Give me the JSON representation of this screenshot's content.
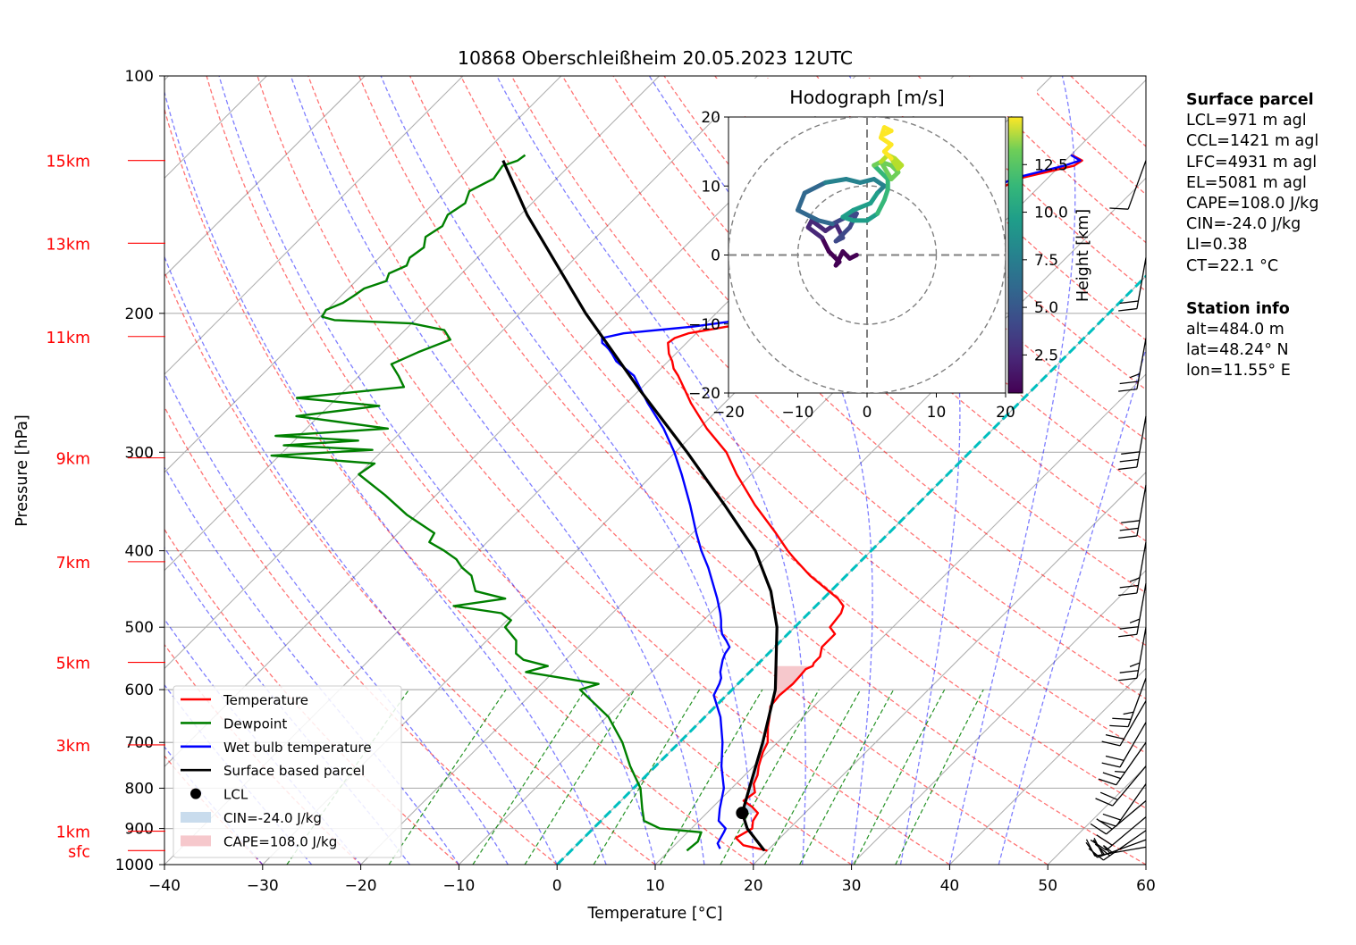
{
  "chart_data": {
    "type": "skew-t log-p",
    "title": "10868 Oberschleißheim 20.05.2023 12UTC",
    "xlabel": "Temperature [°C]",
    "ylabel": "Pressure [hPa]",
    "xlim": [
      -40,
      60
    ],
    "ylim": [
      1000,
      100
    ],
    "y_scale": "log",
    "skew_degrees": 45,
    "x_ticks": [
      "−40",
      "−30",
      "−20",
      "−10",
      "0",
      "10",
      "20",
      "30",
      "40",
      "50",
      "60"
    ],
    "x_tick_values": [
      -40,
      -30,
      -20,
      -10,
      0,
      10,
      20,
      30,
      40,
      50,
      60
    ],
    "y_ticks": [
      "100",
      "200",
      "300",
      "400",
      "500",
      "600",
      "700",
      "800",
      "900",
      "1000"
    ],
    "y_tick_values": [
      100,
      200,
      300,
      400,
      500,
      600,
      700,
      800,
      900,
      1000
    ],
    "height_labels": [
      {
        "label": "15km",
        "p": 128
      },
      {
        "label": "13km",
        "p": 163
      },
      {
        "label": "11km",
        "p": 214
      },
      {
        "label": "9km",
        "p": 305
      },
      {
        "label": "7km",
        "p": 413
      },
      {
        "label": "5km",
        "p": 554
      },
      {
        "label": "3km",
        "p": 705
      },
      {
        "label": "1km",
        "p": 907
      },
      {
        "label": "sfc",
        "p": 960
      }
    ],
    "series": [
      {
        "name": "Temperature",
        "color": "#ff0000",
        "p": [
          960,
          945,
          925,
          900,
          880,
          860,
          845,
          830,
          810,
          790,
          770,
          750,
          720,
          700,
          670,
          650,
          630,
          610,
          590,
          575,
          565,
          560,
          555,
          545,
          530,
          510,
          500,
          480,
          470,
          460,
          450,
          430,
          410,
          400,
          380,
          350,
          320,
          300,
          280,
          260,
          250,
          240,
          235,
          230,
          225,
          218,
          215,
          212,
          208,
          204,
          200,
          195,
          190,
          180,
          175,
          170,
          165,
          160,
          155,
          150,
          145,
          140,
          135,
          130,
          128,
          126
        ],
        "t": [
          20.0,
          17.0,
          15.5,
          16.2,
          15.5,
          15.2,
          14.0,
          12.5,
          12.8,
          11.8,
          11.3,
          10.5,
          9.5,
          9.0,
          7.5,
          6.6,
          5.6,
          5.4,
          5.6,
          5.5,
          5.4,
          5.8,
          5.6,
          5.6,
          4.8,
          4.8,
          3.6,
          3.3,
          2.8,
          1.5,
          -0.2,
          -3.7,
          -6.9,
          -8.5,
          -11.5,
          -16.5,
          -21.5,
          -24.8,
          -29.2,
          -33.4,
          -35.4,
          -37.5,
          -38.7,
          -39.6,
          -40.7,
          -41.9,
          -41.7,
          -40.8,
          -37.6,
          -34.1,
          -34.3,
          -33.2,
          -33.6,
          -32.1,
          -32.6,
          -31.6,
          -30.2,
          -29.7,
          -28.2,
          -27.5,
          -25.3,
          -23.9,
          -23.0,
          -18.6,
          -18.3,
          -19.9
        ]
      },
      {
        "name": "Dewpoint",
        "color": "#008000",
        "p": [
          960,
          935,
          910,
          900,
          880,
          850,
          800,
          750,
          700,
          650,
          600,
          590,
          580,
          570,
          560,
          550,
          540,
          520,
          500,
          490,
          480,
          470,
          460,
          450,
          440,
          430,
          420,
          410,
          400,
          390,
          380,
          360,
          340,
          320,
          310,
          303,
          298,
          294,
          290,
          286,
          280,
          270,
          262,
          256,
          248,
          240,
          232,
          224,
          216,
          210,
          206,
          204,
          202,
          198,
          194,
          190,
          186,
          182,
          178,
          174,
          170,
          165,
          160,
          155,
          150,
          145,
          140,
          135,
          130,
          128,
          126
        ],
        "t": [
          11.8,
          12.0,
          11.4,
          6.8,
          4.4,
          3.0,
          0.7,
          -2.6,
          -5.8,
          -9.8,
          -15.5,
          -14.2,
          -18.5,
          -22.8,
          -21.2,
          -24.3,
          -25.7,
          -27.0,
          -29.5,
          -29.6,
          -31.3,
          -36.9,
          -32.4,
          -36.2,
          -37.2,
          -38.2,
          -40.0,
          -41.4,
          -43.5,
          -45.9,
          -46.3,
          -51.0,
          -55.2,
          -60.0,
          -59.5,
          -70.8,
          -61.1,
          -70.6,
          -63.5,
          -72.4,
          -61.7,
          -72.3,
          -64.9,
          -74.1,
          -64.3,
          -66.0,
          -67.9,
          -66.4,
          -64.4,
          -66.0,
          -70.0,
          -78.2,
          -79.8,
          -80.1,
          -79.1,
          -78.7,
          -78.4,
          -76.9,
          -77.4,
          -76.4,
          -76.9,
          -76.5,
          -77.4,
          -76.8,
          -77.4,
          -76.8,
          -77.6,
          -76.4,
          -76.8,
          -75.8,
          -75.6
        ]
      },
      {
        "name": "Wet bulb temperature",
        "color": "#0000ff",
        "p": [
          955,
          940,
          910,
          900,
          880,
          850,
          800,
          750,
          700,
          650,
          610,
          590,
          580,
          570,
          560,
          550,
          540,
          530,
          520,
          510,
          500,
          490,
          480,
          460,
          440,
          420,
          400,
          380,
          350,
          320,
          300,
          280,
          260,
          240,
          230,
          225,
          222,
          220,
          218,
          215,
          212,
          208,
          204,
          200,
          195,
          190,
          180,
          175,
          170,
          165,
          160,
          155,
          150,
          145,
          140,
          135,
          130,
          128,
          126
        ],
        "t": [
          15.0,
          14.2,
          13.7,
          13.5,
          12.0,
          10.9,
          9.2,
          6.7,
          4.4,
          1.6,
          -1.3,
          -1.9,
          -2.3,
          -3.0,
          -3.5,
          -4.0,
          -4.4,
          -4.6,
          -5.6,
          -6.7,
          -7.5,
          -8.2,
          -9.0,
          -10.8,
          -12.8,
          -14.9,
          -17.3,
          -19.6,
          -23.1,
          -27.1,
          -30.1,
          -33.6,
          -37.8,
          -42.0,
          -45.3,
          -46.5,
          -47.3,
          -47.9,
          -48.6,
          -49.1,
          -47.4,
          -41.1,
          -36.8,
          -36.1,
          -34.4,
          -33.2,
          -32.0,
          -32.0,
          -31.9,
          -30.7,
          -30.0,
          -28.6,
          -27.8,
          -26.3,
          -24.5,
          -23.6,
          -19.6,
          -18.5,
          -20.0
        ]
      },
      {
        "name": "Surface based parcel",
        "color": "#000000",
        "p": [
          960,
          900,
          860,
          800,
          700,
          600,
          500,
          450,
          400,
          350,
          300,
          250,
          200,
          150,
          128
        ],
        "t": [
          19.7,
          15.7,
          13.6,
          11.8,
          8.5,
          4.4,
          -1.8,
          -6.1,
          -11.8,
          -19.6,
          -28.8,
          -40.0,
          -53.3,
          -69.3,
          -77.3
        ]
      }
    ],
    "lcl": {
      "label": "LCL",
      "p": 860,
      "t": 13.6
    },
    "cin_label": "CIN=-24.0 J/kg",
    "cape_label": "CAPE=108.0 J/kg",
    "cin_fill_color": "#c9dced",
    "cape_fill_color": "#f6c8cc",
    "zero_isotherm_color": "#00bfbf",
    "legend": {
      "placement": "lower-left",
      "entries": [
        "Temperature",
        "Dewpoint",
        "Wet bulb temperature",
        "Surface based parcel",
        "LCL",
        "CIN=-24.0 J/kg",
        "CAPE=108.0 J/kg"
      ]
    },
    "wind_barbs": [
      {
        "p": 950,
        "speed_kt": 25,
        "dir_deg": 260
      },
      {
        "p": 930,
        "speed_kt": 25,
        "dir_deg": 250
      },
      {
        "p": 905,
        "speed_kt": 20,
        "dir_deg": 235
      },
      {
        "p": 870,
        "speed_kt": 20,
        "dir_deg": 230
      },
      {
        "p": 830,
        "speed_kt": 20,
        "dir_deg": 230
      },
      {
        "p": 790,
        "speed_kt": 20,
        "dir_deg": 215
      },
      {
        "p": 750,
        "speed_kt": 20,
        "dir_deg": 220
      },
      {
        "p": 700,
        "speed_kt": 25,
        "dir_deg": 215
      },
      {
        "p": 660,
        "speed_kt": 20,
        "dir_deg": 210
      },
      {
        "p": 620,
        "speed_kt": 20,
        "dir_deg": 210
      },
      {
        "p": 580,
        "speed_kt": 25,
        "dir_deg": 200
      },
      {
        "p": 500,
        "speed_kt": 25,
        "dir_deg": 190
      },
      {
        "p": 440,
        "speed_kt": 25,
        "dir_deg": 190
      },
      {
        "p": 390,
        "speed_kt": 25,
        "dir_deg": 190
      },
      {
        "p": 330,
        "speed_kt": 30,
        "dir_deg": 190
      },
      {
        "p": 270,
        "speed_kt": 30,
        "dir_deg": 190
      },
      {
        "p": 215,
        "speed_kt": 25,
        "dir_deg": 190
      },
      {
        "p": 170,
        "speed_kt": 20,
        "dir_deg": 190
      },
      {
        "p": 128,
        "speed_kt": 10,
        "dir_deg": 200
      }
    ],
    "hodograph": {
      "title": "Hodograph [m/s]",
      "xlim": [
        -20,
        20
      ],
      "ylim": [
        -20,
        20
      ],
      "ticks": [
        -20,
        -10,
        0,
        10,
        20
      ],
      "tick_labels": [
        "−20",
        "−10",
        "0",
        "10",
        "20"
      ],
      "rings": [
        10,
        20
      ],
      "colorbar_label": "Height [km]",
      "colorbar_ticks": [
        2.5,
        5.0,
        7.5,
        10.0,
        12.5
      ],
      "colorbar_tick_labels": [
        "2.5",
        "5.0",
        "7.5",
        "10.0",
        "12.5"
      ],
      "colorbar_range": [
        0.5,
        15.0
      ],
      "u": [
        -1.5,
        -2.5,
        -3.5,
        -4.5,
        -4.0,
        -5.5,
        -6.5,
        -8.5,
        -8.0,
        -6.0,
        -4.5,
        -3.5,
        -4.5,
        -2.5,
        -1.5,
        -3.0,
        -5.0,
        -7.0,
        -8.0,
        -10.0,
        -9.0,
        -6.0,
        -3.0,
        -1.0,
        1.0,
        2.5,
        1.5,
        0.5,
        -2.0,
        -3.5,
        -2.0,
        0.0,
        1.5,
        2.5,
        3.0,
        3.0,
        2.0,
        1.0,
        2.0,
        3.5,
        4.5,
        3.5,
        2.0,
        3.0,
        4.0,
        5.0,
        4.5,
        3.5,
        2.5,
        3.5,
        2.0,
        2.5,
        3.5,
        2.5
      ],
      "v": [
        0.0,
        -0.5,
        0.5,
        -1.5,
        -1.0,
        0.5,
        2.5,
        4.0,
        5.0,
        3.5,
        4.5,
        2.5,
        2.0,
        4.0,
        6.0,
        5.5,
        4.5,
        5.0,
        5.5,
        6.5,
        9.0,
        10.5,
        11.0,
        10.5,
        11.0,
        10.0,
        9.0,
        7.5,
        6.5,
        5.5,
        5.0,
        5.0,
        6.0,
        8.0,
        9.5,
        11.0,
        12.0,
        13.0,
        13.5,
        13.0,
        12.0,
        11.0,
        13.5,
        14.5,
        14.0,
        13.0,
        12.5,
        14.0,
        15.0,
        16.0,
        17.0,
        18.5,
        18.0,
        17.5
      ]
    }
  },
  "side_panel": {
    "surface_title": "Surface parcel",
    "surface_lines": [
      "LCL=971 m agl",
      "CCL=1421 m agl",
      "LFC=4931 m agl",
      "EL=5081 m agl",
      "CAPE=108.0 J/kg",
      "CIN=-24.0 J/kg",
      "LI=0.38",
      "CT=22.1 °C"
    ],
    "station_title": "Station info",
    "station_lines": [
      "alt=484.0 m",
      "lat=48.24° N",
      "lon=11.55° E"
    ]
  }
}
